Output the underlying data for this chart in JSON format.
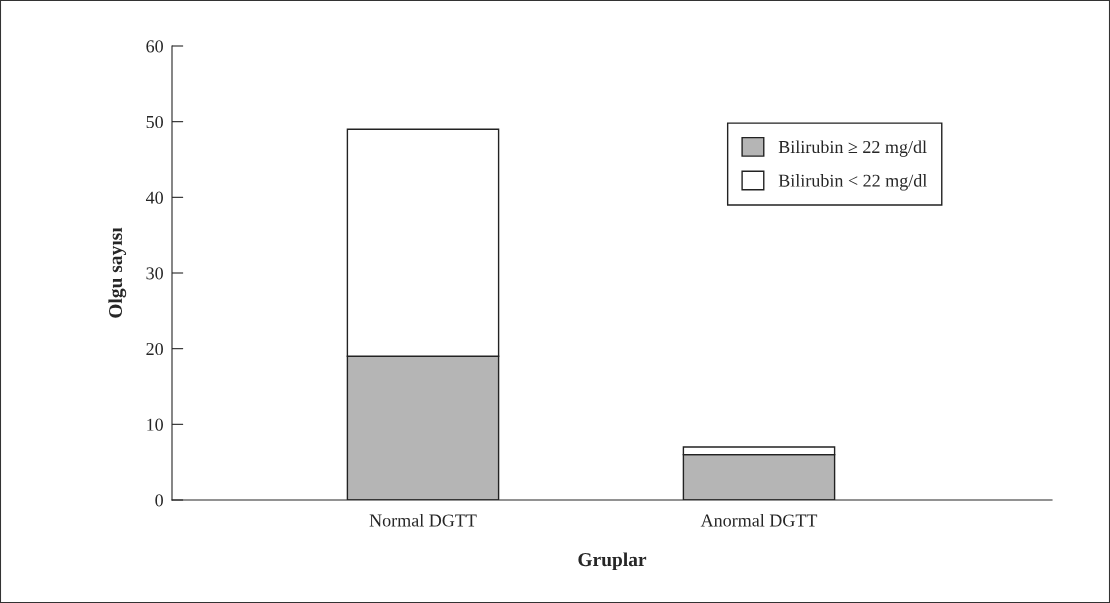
{
  "chart_data": {
    "type": "bar",
    "stacked": true,
    "xlabel": "Gruplar",
    "ylabel": "Olgu sayısı",
    "categories": [
      "Normal DGTT",
      "Anormal DGTT"
    ],
    "series": [
      {
        "name": "Bilirubin ≥ 22 mg/dl",
        "color": "#b5b5b5",
        "values": [
          19,
          6
        ]
      },
      {
        "name": "Bilirubin < 22 mg/dl",
        "color": "#ffffff",
        "values": [
          30,
          1
        ]
      }
    ],
    "ylim": [
      0,
      60
    ],
    "yticks": [
      0,
      10,
      20,
      30,
      40,
      50,
      60
    ],
    "grid": false,
    "legend": "top right"
  }
}
